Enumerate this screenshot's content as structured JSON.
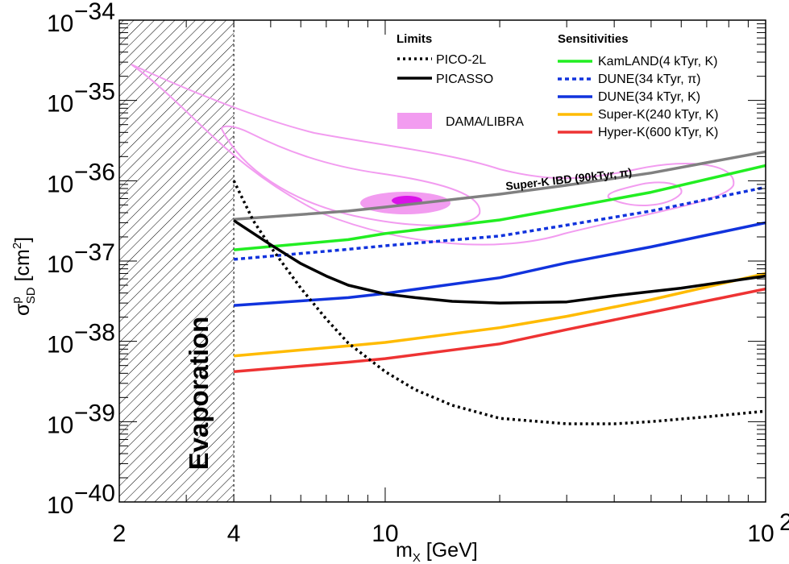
{
  "chart_data": {
    "type": "line",
    "x_scale": "log",
    "y_scale": "log",
    "xlim": [
      2,
      100
    ],
    "ylim": [
      1e-40,
      1e-34
    ],
    "xlabel": "m",
    "xlabel_sub": "X",
    "xlabel_unit": " [GeV]",
    "ylabel": "σ",
    "ylabel_sub": "SD",
    "ylabel_sup": "p",
    "ylabel_unit": " [cm",
    "ylabel_unit_sup": "2",
    "ylabel_unit_close": "]",
    "x_ticks": [
      {
        "value": 2,
        "label": "2"
      },
      {
        "value": 4,
        "label": "4"
      },
      {
        "value": 10,
        "label": "10"
      },
      {
        "value": 100,
        "label": "10",
        "exp": "2"
      }
    ],
    "y_ticks": [
      {
        "value": 1e-40,
        "base": "10",
        "exp": "−40"
      },
      {
        "value": 1e-39,
        "base": "10",
        "exp": "−39"
      },
      {
        "value": 1e-38,
        "base": "10",
        "exp": "−38"
      },
      {
        "value": 1e-37,
        "base": "10",
        "exp": "−37"
      },
      {
        "value": 1e-36,
        "base": "10",
        "exp": "−36"
      },
      {
        "value": 1e-35,
        "base": "10",
        "exp": "−35"
      },
      {
        "value": 1e-34,
        "base": "10",
        "exp": "−34"
      }
    ],
    "evaporation_region": {
      "x_max": 4,
      "label": "Evaporation"
    },
    "legend_limits_title": "Limits",
    "legend_sensitivities_title": "Sensitivities",
    "limits": [
      {
        "name": "PICO-2L",
        "color": "#000000",
        "style": "dotted",
        "points": [
          [
            4,
            1e-36
          ],
          [
            4.5,
            3.2e-37
          ],
          [
            5,
            1.5e-37
          ],
          [
            6,
            4.6e-38
          ],
          [
            7,
            1.9e-38
          ],
          [
            8,
            9.5e-39
          ],
          [
            10,
            4.2e-39
          ],
          [
            12,
            2.5e-39
          ],
          [
            15,
            1.6e-39
          ],
          [
            20,
            1.1e-39
          ],
          [
            30,
            9.4e-40
          ],
          [
            40,
            9.4e-40
          ],
          [
            50,
            1e-39
          ],
          [
            70,
            1.15e-39
          ],
          [
            100,
            1.35e-39
          ]
        ]
      },
      {
        "name": "PICASSO",
        "color": "#000000",
        "style": "solid",
        "points": [
          [
            4,
            3.2e-37
          ],
          [
            5,
            1.6e-37
          ],
          [
            6,
            9.3e-38
          ],
          [
            7,
            6.5e-38
          ],
          [
            8,
            5e-38
          ],
          [
            10,
            3.9e-38
          ],
          [
            12,
            3.5e-38
          ],
          [
            15,
            3.15e-38
          ],
          [
            20,
            3e-38
          ],
          [
            30,
            3.1e-38
          ],
          [
            40,
            3.7e-38
          ],
          [
            60,
            4.6e-38
          ],
          [
            80,
            5.6e-38
          ],
          [
            100,
            6.5e-38
          ]
        ]
      }
    ],
    "sensitivities": [
      {
        "name": "KamLAND(4 kTyr, K)",
        "color": "#22ee22",
        "style": "solid",
        "points": [
          [
            4,
            1.38e-37
          ],
          [
            8,
            1.85e-37
          ],
          [
            10,
            2.2e-37
          ],
          [
            20,
            3.25e-37
          ],
          [
            30,
            4.6e-37
          ],
          [
            50,
            7.2e-37
          ],
          [
            100,
            1.55e-36
          ]
        ]
      },
      {
        "name": "DUNE(34 kTyr, π)",
        "color": "#1133dd",
        "style": "dotted",
        "points": [
          [
            4,
            1.05e-37
          ],
          [
            8,
            1.4e-37
          ],
          [
            10,
            1.55e-37
          ],
          [
            20,
            2.05e-37
          ],
          [
            30,
            2.8e-37
          ],
          [
            50,
            4.2e-37
          ],
          [
            100,
            8.3e-37
          ]
        ]
      },
      {
        "name": "DUNE(34 kTyr, K)",
        "color": "#1133dd",
        "style": "solid",
        "points": [
          [
            4,
            2.8e-38
          ],
          [
            8,
            3.5e-38
          ],
          [
            10,
            3.95e-38
          ],
          [
            20,
            6.2e-38
          ],
          [
            30,
            9.5e-38
          ],
          [
            50,
            1.5e-37
          ],
          [
            100,
            3e-37
          ]
        ]
      },
      {
        "name": "Super-K(240 kTyr, K)",
        "color": "#ffbb00",
        "style": "solid",
        "points": [
          [
            4,
            6.6e-39
          ],
          [
            8,
            8.8e-39
          ],
          [
            10,
            9.7e-39
          ],
          [
            20,
            1.48e-38
          ],
          [
            30,
            2.05e-38
          ],
          [
            50,
            3.3e-38
          ],
          [
            100,
            7e-38
          ]
        ]
      },
      {
        "name": "Hyper-K(600 kTyr, K)",
        "color": "#ee3333",
        "style": "solid",
        "points": [
          [
            4,
            4.2e-39
          ],
          [
            8,
            5.5e-39
          ],
          [
            10,
            6.1e-39
          ],
          [
            20,
            9.3e-39
          ],
          [
            30,
            1.4e-38
          ],
          [
            50,
            2.3e-38
          ],
          [
            100,
            4.5e-38
          ]
        ]
      }
    ],
    "super_k_ibd": {
      "name": "Super-K IBD (90kTyr, π)",
      "color": "#808080",
      "points": [
        [
          4,
          3.3e-37
        ],
        [
          8,
          4.2e-37
        ],
        [
          10,
          4.7e-37
        ],
        [
          20,
          6.8e-37
        ],
        [
          30,
          8.8e-37
        ],
        [
          50,
          1.25e-36
        ],
        [
          100,
          2.3e-36
        ]
      ]
    },
    "dama_libra": {
      "name": "DAMA/LIBRA",
      "fill_color": "#ff88ee",
      "core_color": "#dd11ee"
    }
  }
}
